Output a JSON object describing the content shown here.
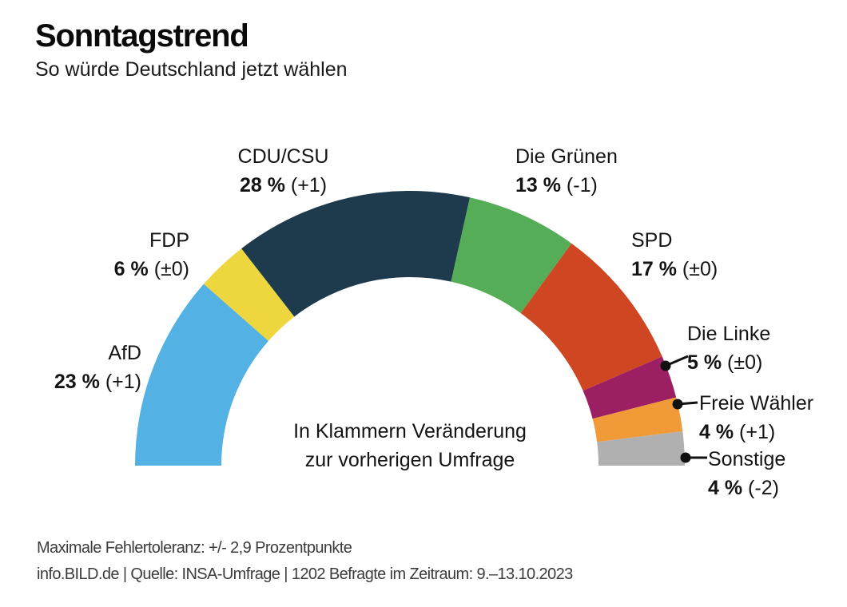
{
  "header": {
    "title": "Sonntagstrend",
    "subtitle": "So würde Deutschland jetzt wählen"
  },
  "chart_data": {
    "type": "pie",
    "variant": "semicircle-donut",
    "title": "Sonntagstrend",
    "subtitle": "So würde Deutschland jetzt wählen",
    "unit": "%",
    "arc_degrees": 180,
    "categories": [
      "AfD",
      "FDP",
      "CDU/CSU",
      "Die Grünen",
      "SPD",
      "Die Linke",
      "Freie Wähler",
      "Sonstige"
    ],
    "values": [
      23,
      6,
      28,
      13,
      17,
      5,
      4,
      4
    ],
    "changes": [
      "+1",
      "±0",
      "+1",
      "-1",
      "±0",
      "±0",
      "+1",
      "-2"
    ],
    "colors": [
      "#54b1e3",
      "#eed63f",
      "#1e3a4d",
      "#55ad58",
      "#cf4623",
      "#9d1f63",
      "#f19a38",
      "#b0b0b0"
    ],
    "center_note_line1": "In Klammern Veränderung",
    "center_note_line2": "zur vorherigen Umfrage"
  },
  "footer": {
    "line1": "Maximale Fehlertoleranz: +/- 2,9 Prozentpunkte",
    "line2": "info.BILD.de | Quelle: INSA-Umfrage | 1202 Befragte im Zeitraum: 9.–13.10.2023"
  }
}
